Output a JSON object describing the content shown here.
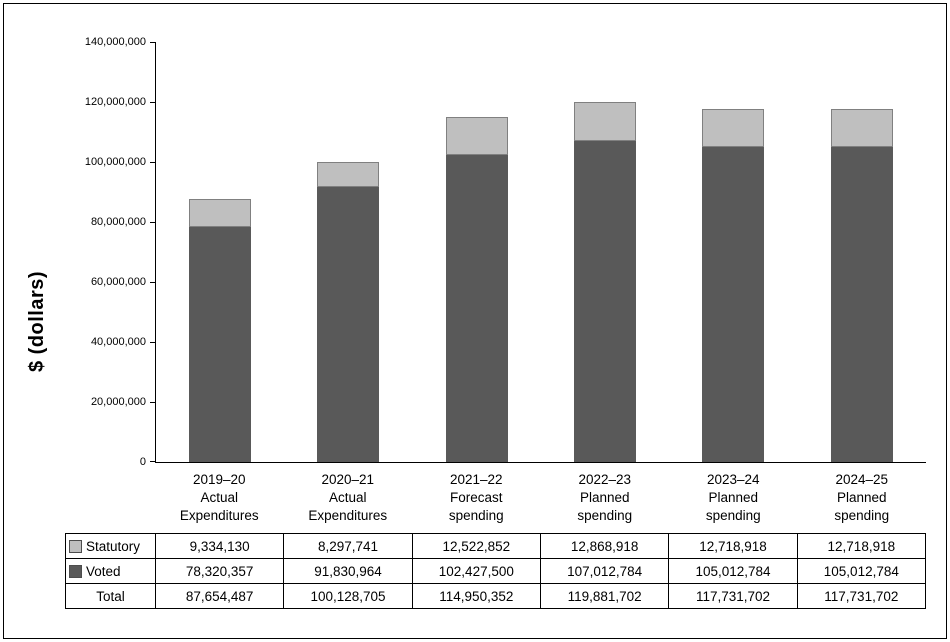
{
  "chart_data": {
    "type": "bar",
    "stacked": true,
    "title": "",
    "ylabel": "$ (dollars)",
    "ylim": [
      0,
      140000000
    ],
    "ytick_step": 20000000,
    "grid": false,
    "legend_position": "table-left",
    "yticks": [
      "140,000,000",
      "120,000,000",
      "100,000,000",
      "80,000,000",
      "60,000,000",
      "40,000,000",
      "20,000,000",
      "0"
    ],
    "categories": [
      [
        "2019–20",
        "Actual",
        "Expenditures"
      ],
      [
        "2020–21",
        "Actual",
        "Expenditures"
      ],
      [
        "2021–22",
        "Forecast",
        "spending"
      ],
      [
        "2022–23",
        "Planned",
        "spending"
      ],
      [
        "2023–24",
        "Planned",
        "spending"
      ],
      [
        "2024–25",
        "Planned",
        "spending"
      ]
    ],
    "series": [
      {
        "name": "Statutory",
        "color": "#bfbfbf",
        "border": "#808080",
        "values": [
          9334130,
          8297741,
          12522852,
          12868918,
          12718918,
          12718918
        ],
        "labels": [
          "9,334,130",
          "8,297,741",
          "12,522,852",
          "12,868,918",
          "12,718,918",
          "12,718,918"
        ]
      },
      {
        "name": "Voted",
        "color": "#595959",
        "border": "#595959",
        "values": [
          78320357,
          91830964,
          102427500,
          107012784,
          105012784,
          105012784
        ],
        "labels": [
          "78,320,357",
          "91,830,964",
          "102,427,500",
          "107,012,784",
          "105,012,784",
          "105,012,784"
        ]
      }
    ],
    "totals": {
      "label": "Total",
      "values": [
        87654487,
        100128705,
        114950352,
        119881702,
        117731702,
        117731702
      ],
      "labels": [
        "87,654,487",
        "100,128,705",
        "114,950,352",
        "119,881,702",
        "117,731,702",
        "117,731,702"
      ]
    }
  }
}
